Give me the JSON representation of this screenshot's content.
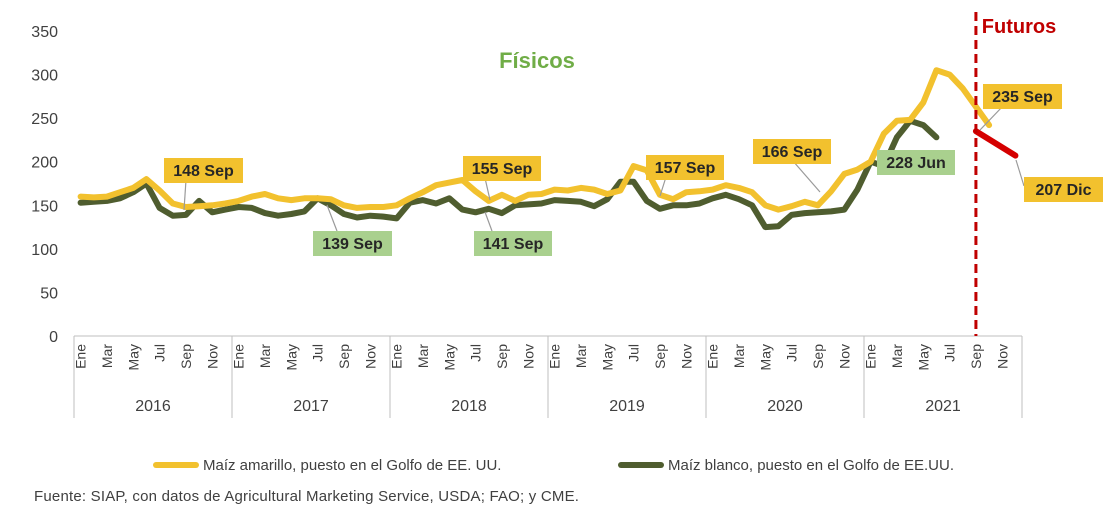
{
  "chart_data": {
    "type": "line",
    "title": "",
    "xlabel": "",
    "ylabel": "",
    "ylim": [
      0,
      350
    ],
    "yticks": [
      0,
      50,
      100,
      150,
      200,
      250,
      300,
      350
    ],
    "grid": false,
    "legend_position": "bottom",
    "month_tick_labels": [
      "Ene",
      "Mar",
      "May",
      "Jul",
      "Sep",
      "Nov"
    ],
    "years": [
      "2016",
      "2017",
      "2018",
      "2019",
      "2020",
      "2021"
    ],
    "x_start": "2016-01",
    "x_end": "2021-12",
    "series": [
      {
        "name": "Maíz amarillo, puesto en el Golfo de EE. UU.",
        "color": "#F2C12E",
        "values": [
          160,
          159,
          160,
          165,
          170,
          180,
          167,
          152,
          148,
          149,
          150,
          152,
          155,
          160,
          163,
          158,
          156,
          158,
          158,
          157,
          150,
          147,
          148,
          148,
          150,
          158,
          165,
          173,
          176,
          179,
          166,
          155,
          162,
          155,
          162,
          163,
          168,
          167,
          170,
          168,
          163,
          167,
          195,
          190,
          162,
          157,
          165,
          166,
          168,
          173,
          170,
          165,
          150,
          145,
          149,
          154,
          150,
          166,
          186,
          191,
          200,
          232,
          247,
          248,
          268,
          305,
          300,
          284,
          263,
          242
        ]
      },
      {
        "name": "Maíz blanco, puesto en el Golfo de EE.UU.",
        "color": "#4F5D2F",
        "values": [
          153,
          154,
          155,
          158,
          165,
          175,
          147,
          138,
          139,
          155,
          142,
          145,
          148,
          147,
          141,
          138,
          140,
          143,
          158,
          150,
          140,
          136,
          138,
          137,
          135,
          153,
          156,
          152,
          158,
          145,
          142,
          146,
          141,
          150,
          151,
          152,
          156,
          155,
          154,
          149,
          157,
          177,
          177,
          155,
          146,
          150,
          150,
          152,
          158,
          162,
          157,
          150,
          125,
          126,
          139,
          141,
          142,
          143,
          145,
          168,
          200,
          195,
          228,
          247,
          242,
          228
        ]
      },
      {
        "name": "Futuros",
        "color": "#D50000",
        "x": [
          "2021-09",
          "2021-12"
        ],
        "values": [
          235,
          207
        ]
      }
    ],
    "annotations": {
      "fisicos": "Físicos",
      "futuros": "Futuros",
      "a_148": "148 Sep",
      "a_139": "139 Sep",
      "a_155": "155 Sep",
      "a_141": "141 Sep",
      "a_157": "157 Sep",
      "a_166": "166 Sep",
      "a_228": "228 Jun",
      "a_235": "235 Sep",
      "a_207": "207 Dic"
    },
    "annotation_colors": {
      "yellow_box": "#F2C12E",
      "green_box": "#A9D08E",
      "fisicos_text": "#70AD47",
      "futuros_text": "#C00000"
    }
  },
  "source": "Fuente: SIAP, con datos de Agricultural Marketing Service, USDA; FAO; y CME."
}
